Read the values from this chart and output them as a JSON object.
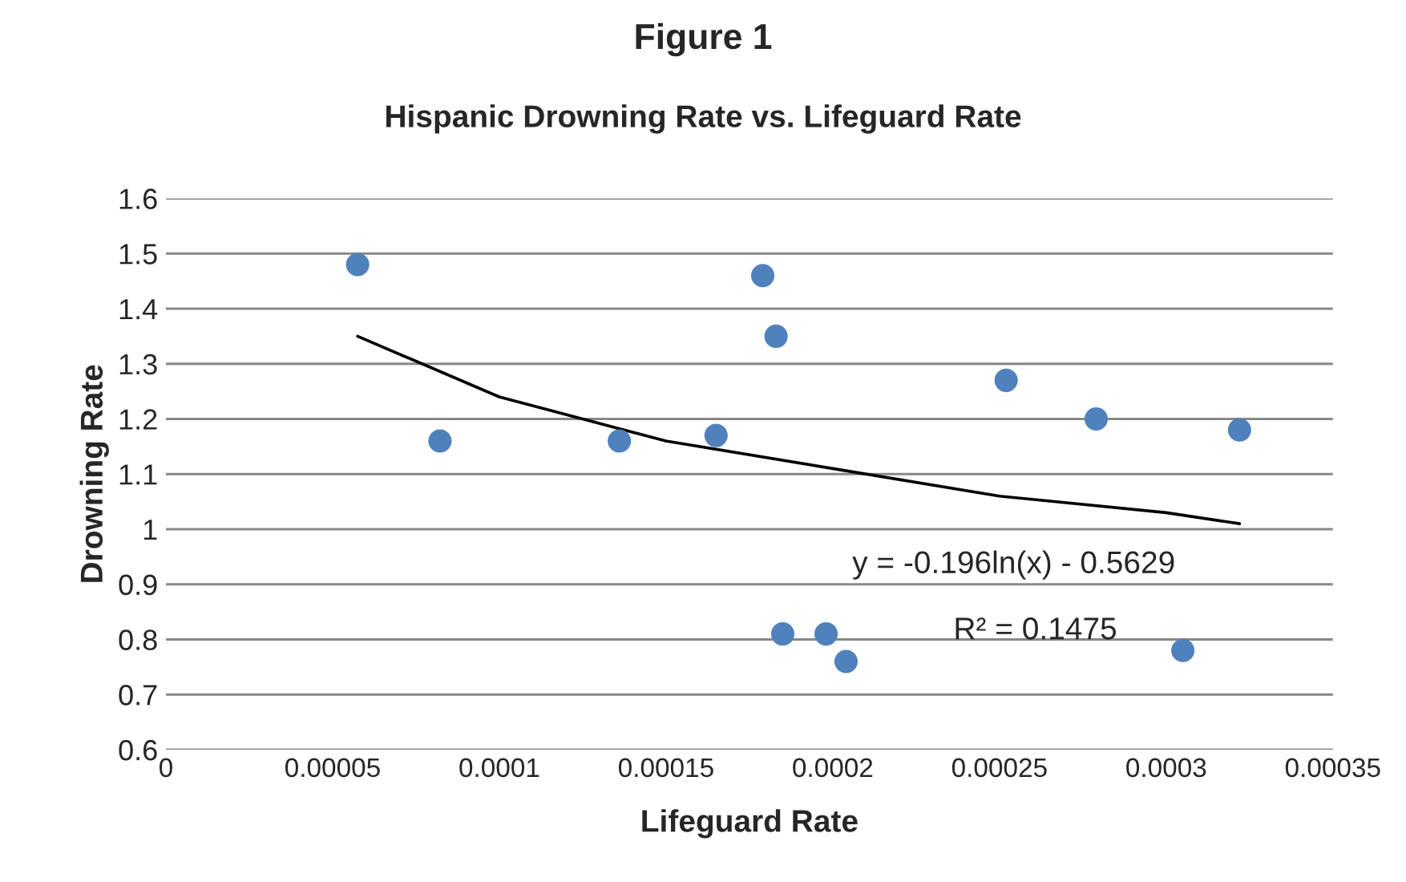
{
  "chart_data": {
    "type": "scatter",
    "title": "Figure 1",
    "subtitle": "Hispanic Drowning Rate vs. Lifeguard Rate",
    "xlabel": "Lifeguard Rate",
    "ylabel": "Drowning Rate",
    "x": [
      5.75e-05,
      8.22e-05,
      0.000136,
      0.000165,
      0.000179,
      0.000183,
      0.000185,
      0.000198,
      0.000204,
      0.000252,
      0.000279,
      0.000305,
      0.000322
    ],
    "series": [
      {
        "color": "#4f81bd",
        "marker": "circle",
        "values": [
          1.48,
          1.16,
          1.16,
          1.17,
          1.46,
          1.35,
          0.81,
          0.81,
          0.76,
          1.27,
          1.2,
          0.78,
          1.18
        ]
      },
      {
        "type": "line",
        "color": "#000000",
        "marker": "none",
        "line_style": "solid",
        "x": [
          5.75e-05,
          0.0001,
          0.00015,
          0.0002,
          0.00025,
          0.0003,
          0.000322
        ],
        "values": [
          1.35,
          1.24,
          1.16,
          1.11,
          1.06,
          1.03,
          1.01
        ]
      }
    ],
    "xlim": [
      0,
      0.00035
    ],
    "xticks": [
      0,
      {
        "value": 5e-05,
        "label": "0.00005"
      },
      {
        "value": 0.0001,
        "label": "0.0001"
      },
      {
        "value": 0.00015,
        "label": "0.00015"
      },
      {
        "value": 0.0002,
        "label": "0.0002"
      },
      {
        "value": 0.00025,
        "label": "0.00025"
      },
      {
        "value": 0.0003,
        "label": "0.0003"
      },
      {
        "value": 0.00035,
        "label": "0.00035"
      }
    ],
    "ylim": [
      0.6,
      1.6
    ],
    "yticks": [
      0.6,
      0.7,
      0.8,
      0.9,
      1,
      1.1,
      1.2,
      1.3,
      1.4,
      1.5,
      1.6
    ],
    "grid": "y",
    "annotations": [
      "y = -0.196ln(x) - 0.5629",
      "R² = 0.1475"
    ]
  }
}
